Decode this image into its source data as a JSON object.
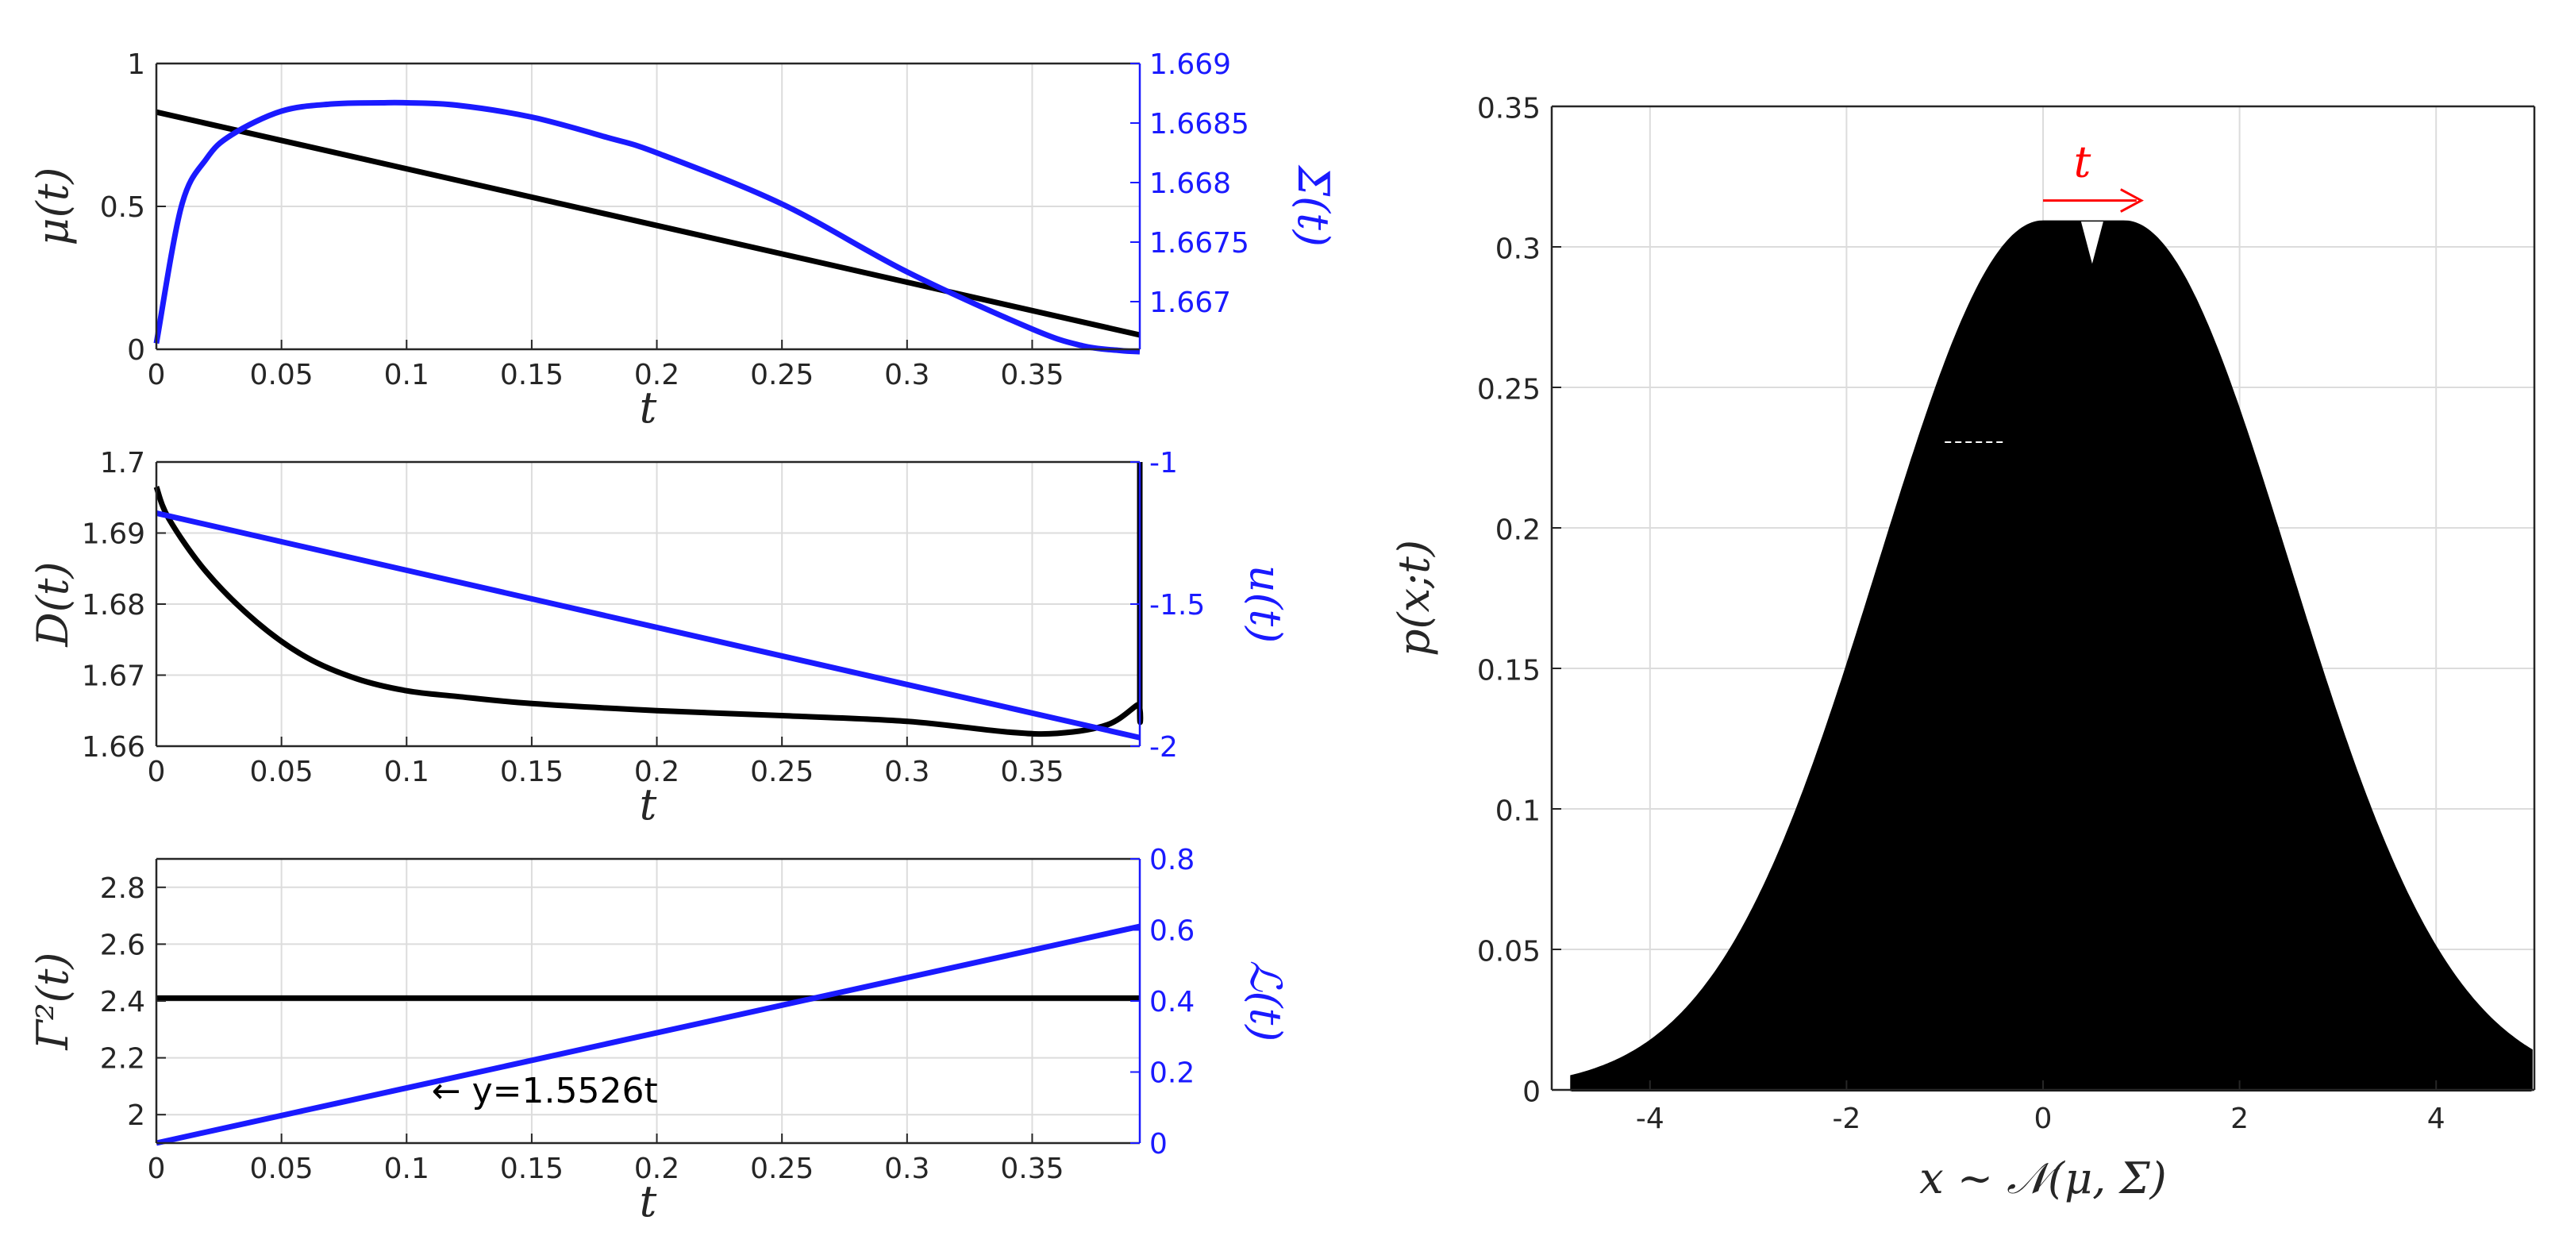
{
  "colors": {
    "black": "#000000",
    "blue": "#1a1aff",
    "red": "#ff0000",
    "grid": "#dcdcdc",
    "axis": "#262626"
  },
  "chart_data": [
    {
      "id": "mu-sigma",
      "type": "line",
      "xlabel": "t",
      "ylabel": "μ(t)",
      "ylabel2": "Σ(t)",
      "xlim": [
        0,
        0.393
      ],
      "ylim": [
        0,
        1
      ],
      "ylim2": [
        1.6666,
        1.669
      ],
      "xticks": [
        "0",
        "0.05",
        "0.1",
        "0.15",
        "0.2",
        "0.25",
        "0.3",
        "0.35"
      ],
      "xtick_values": [
        0,
        0.05,
        0.1,
        0.15,
        0.2,
        0.25,
        0.3,
        0.35
      ],
      "yticks": [
        "0",
        "0.5",
        "1"
      ],
      "ytick_values": [
        0,
        0.5,
        1
      ],
      "yticks2": [
        "1.667",
        "1.6675",
        "1.668",
        "1.6685",
        "1.669"
      ],
      "ytick_values2": [
        1.667,
        1.6675,
        1.668,
        1.6685,
        1.669
      ],
      "series": [
        {
          "name": "μ(t)",
          "axis": "left",
          "color": "#000000",
          "x": [
            0,
            0.393
          ],
          "y": [
            0.83,
            0.05
          ]
        },
        {
          "name": "Σ(t)",
          "axis": "right",
          "color": "#1a1aff",
          "x": [
            0,
            0.01,
            0.02,
            0.03,
            0.05,
            0.07,
            0.09,
            0.1,
            0.12,
            0.15,
            0.18,
            0.2,
            0.25,
            0.3,
            0.35,
            0.37,
            0.385,
            0.393
          ],
          "y": [
            1.66665,
            1.6678,
            1.6682,
            1.6684,
            1.6686,
            1.66866,
            1.66867,
            1.66867,
            1.66865,
            1.66855,
            1.66838,
            1.66825,
            1.66782,
            1.66725,
            1.66677,
            1.66663,
            1.66659,
            1.66658
          ]
        }
      ]
    },
    {
      "id": "d-u",
      "type": "line",
      "xlabel": "t",
      "ylabel": "D(t)",
      "ylabel2": "u(t)",
      "xlim": [
        0,
        0.393
      ],
      "ylim": [
        1.66,
        1.7
      ],
      "ylim2": [
        -2,
        -1
      ],
      "xticks": [
        "0",
        "0.05",
        "0.1",
        "0.15",
        "0.2",
        "0.25",
        "0.3",
        "0.35"
      ],
      "xtick_values": [
        0,
        0.05,
        0.1,
        0.15,
        0.2,
        0.25,
        0.3,
        0.35
      ],
      "yticks": [
        "1.66",
        "1.67",
        "1.68",
        "1.69",
        "1.7"
      ],
      "ytick_values": [
        1.66,
        1.67,
        1.68,
        1.69,
        1.7
      ],
      "yticks2": [
        "-2",
        "-1.5",
        "-1"
      ],
      "ytick_values2": [
        -2,
        -1.5,
        -1
      ],
      "series": [
        {
          "name": "D(t)",
          "axis": "left",
          "color": "#000000",
          "x": [
            0,
            0.005,
            0.02,
            0.04,
            0.06,
            0.08,
            0.1,
            0.12,
            0.15,
            0.2,
            0.25,
            0.3,
            0.34,
            0.36,
            0.38,
            0.392,
            0.393,
            0.393
          ],
          "y": [
            1.6965,
            1.692,
            1.6845,
            1.6775,
            1.6725,
            1.6695,
            1.6678,
            1.667,
            1.666,
            1.665,
            1.6643,
            1.6635,
            1.662,
            1.6618,
            1.663,
            1.6658,
            1.6658,
            1.7
          ]
        },
        {
          "name": "u(t)",
          "axis": "right",
          "color": "#1a1aff",
          "x": [
            0,
            0.393
          ],
          "y": [
            -1.18,
            -1.97
          ]
        }
      ]
    },
    {
      "id": "gamma-l",
      "type": "line",
      "xlabel": "t",
      "ylabel": "Γ²(t)",
      "ylabel2": "ℒ(t)",
      "xlim": [
        0,
        0.393
      ],
      "ylim": [
        1.9,
        2.9
      ],
      "ylim2": [
        0,
        0.8
      ],
      "xticks": [
        "0",
        "0.05",
        "0.1",
        "0.15",
        "0.2",
        "0.25",
        "0.3",
        "0.35"
      ],
      "xtick_values": [
        0,
        0.05,
        0.1,
        0.15,
        0.2,
        0.25,
        0.3,
        0.35
      ],
      "yticks": [
        "2",
        "2.2",
        "2.4",
        "2.6",
        "2.8"
      ],
      "ytick_values": [
        2,
        2.2,
        2.4,
        2.6,
        2.8
      ],
      "yticks2": [
        "0",
        "0.2",
        "0.4",
        "0.6",
        "0.8"
      ],
      "ytick_values2": [
        0,
        0.2,
        0.4,
        0.6,
        0.8
      ],
      "annotation": {
        "text": "← y=1.5526t",
        "t": 0.11,
        "y2": 0.145
      },
      "series": [
        {
          "name": "Γ²(t)",
          "axis": "left",
          "color": "#000000",
          "x": [
            0,
            0.393
          ],
          "y": [
            2.41,
            2.41
          ]
        },
        {
          "name": "ℒ(t)",
          "axis": "right",
          "color": "#1a1aff",
          "x": [
            0,
            0.393
          ],
          "y": [
            0,
            0.61
          ]
        }
      ]
    },
    {
      "id": "density",
      "type": "area",
      "xlabel": "x ~ 𝒩(μ, Σ)",
      "ylabel": "p(x;t)",
      "xlim": [
        -5,
        5
      ],
      "ylim": [
        0,
        0.35
      ],
      "xticks": [
        "-4",
        "-2",
        "0",
        "2",
        "4"
      ],
      "xtick_values": [
        -4,
        -2,
        0,
        2,
        4
      ],
      "yticks": [
        "0",
        "0.05",
        "0.1",
        "0.15",
        "0.2",
        "0.25",
        "0.3",
        "0.35"
      ],
      "ytick_values": [
        0,
        0.05,
        0.1,
        0.15,
        0.2,
        0.25,
        0.3,
        0.35
      ],
      "mu_range": [
        0,
        0.83
      ],
      "sigma": 1.6667,
      "peak": 0.309,
      "arrow_label": "t",
      "arrow_from": 0,
      "arrow_to": 1.0
    }
  ]
}
